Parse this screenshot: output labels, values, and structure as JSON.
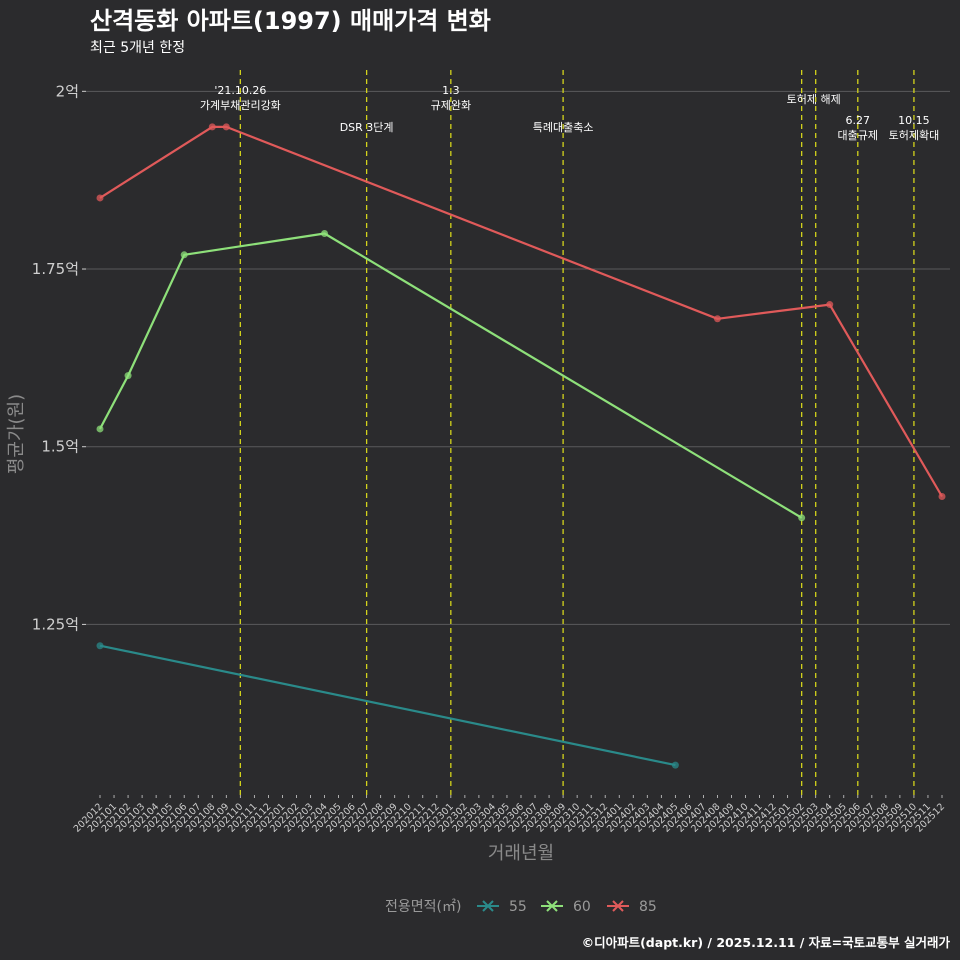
{
  "chart_data": {
    "type": "line",
    "title": "산격동화 아파트(1997) 매매가격 변화",
    "subtitle": "최근 5개년 한정",
    "xlabel": "거래년월",
    "ylabel": "평균가(원)",
    "ylim": [
      1.01,
      2.03
    ],
    "y_ticks": [
      {
        "value": 1.25,
        "label": "1.25억"
      },
      {
        "value": 1.5,
        "label": "1.5억"
      },
      {
        "value": 1.75,
        "label": "1.75억"
      },
      {
        "value": 2.0,
        "label": "2억"
      }
    ],
    "categories": [
      "202012",
      "202101",
      "202102",
      "202103",
      "202104",
      "202105",
      "202106",
      "202107",
      "202108",
      "202109",
      "202110",
      "202111",
      "202112",
      "202201",
      "202202",
      "202203",
      "202204",
      "202205",
      "202206",
      "202207",
      "202208",
      "202209",
      "202210",
      "202211",
      "202212",
      "202301",
      "202302",
      "202303",
      "202304",
      "202305",
      "202306",
      "202307",
      "202308",
      "202309",
      "202310",
      "202311",
      "202312",
      "202401",
      "202402",
      "202403",
      "202404",
      "202405",
      "202406",
      "202407",
      "202408",
      "202409",
      "202410",
      "202411",
      "202412",
      "202501",
      "202502",
      "202503",
      "202504",
      "202505",
      "202506",
      "202507",
      "202508",
      "202509",
      "202510",
      "202511",
      "202512"
    ],
    "series": [
      {
        "name": "55",
        "color": "#2a8a8a",
        "points": [
          {
            "x": "202012",
            "y": 1.22
          },
          {
            "x": "202405",
            "y": 1.052
          }
        ]
      },
      {
        "name": "60",
        "color": "#8ee07a",
        "points": [
          {
            "x": "202012",
            "y": 1.525
          },
          {
            "x": "202102",
            "y": 1.6
          },
          {
            "x": "202106",
            "y": 1.77
          },
          {
            "x": "202204",
            "y": 1.8
          },
          {
            "x": "202502",
            "y": 1.4
          }
        ]
      },
      {
        "name": "85",
        "color": "#e05a5a",
        "points": [
          {
            "x": "202012",
            "y": 1.85
          },
          {
            "x": "202108",
            "y": 1.95
          },
          {
            "x": "202109",
            "y": 1.95
          },
          {
            "x": "202408",
            "y": 1.68
          },
          {
            "x": "202504",
            "y": 1.7
          },
          {
            "x": "202512",
            "y": 1.43
          }
        ]
      }
    ],
    "events": [
      {
        "x": "202110",
        "lines": [
          "'21.10.26",
          "가계부채관리강화"
        ],
        "level": 1
      },
      {
        "x": "202207",
        "lines": [
          "DSR 3단계"
        ],
        "level": 3
      },
      {
        "x": "202301",
        "lines": [
          "1.3",
          "규제완화"
        ],
        "level": 1
      },
      {
        "x": "202309",
        "lines": [
          "특례대출축소"
        ],
        "level": 3
      },
      {
        "x": "202502",
        "lines": [
          "토허제 해제"
        ],
        "level": 2,
        "offset": 12
      },
      {
        "x": "202503",
        "lines": [],
        "level": 2
      },
      {
        "x": "202506",
        "lines": [
          "6.27",
          "대출규제"
        ],
        "level": 4
      },
      {
        "x": "202510",
        "lines": [
          "10.15",
          "토허제확대"
        ],
        "level": 4
      }
    ],
    "event_color": "#d4d41c",
    "legend": {
      "title": "전용면적(㎡)",
      "position": "bottom",
      "items": [
        "55",
        "60",
        "85"
      ]
    },
    "caption": "©디아파트(dapt.kr) / 2025.12.11 / 자료=국토교통부 실거래가"
  }
}
